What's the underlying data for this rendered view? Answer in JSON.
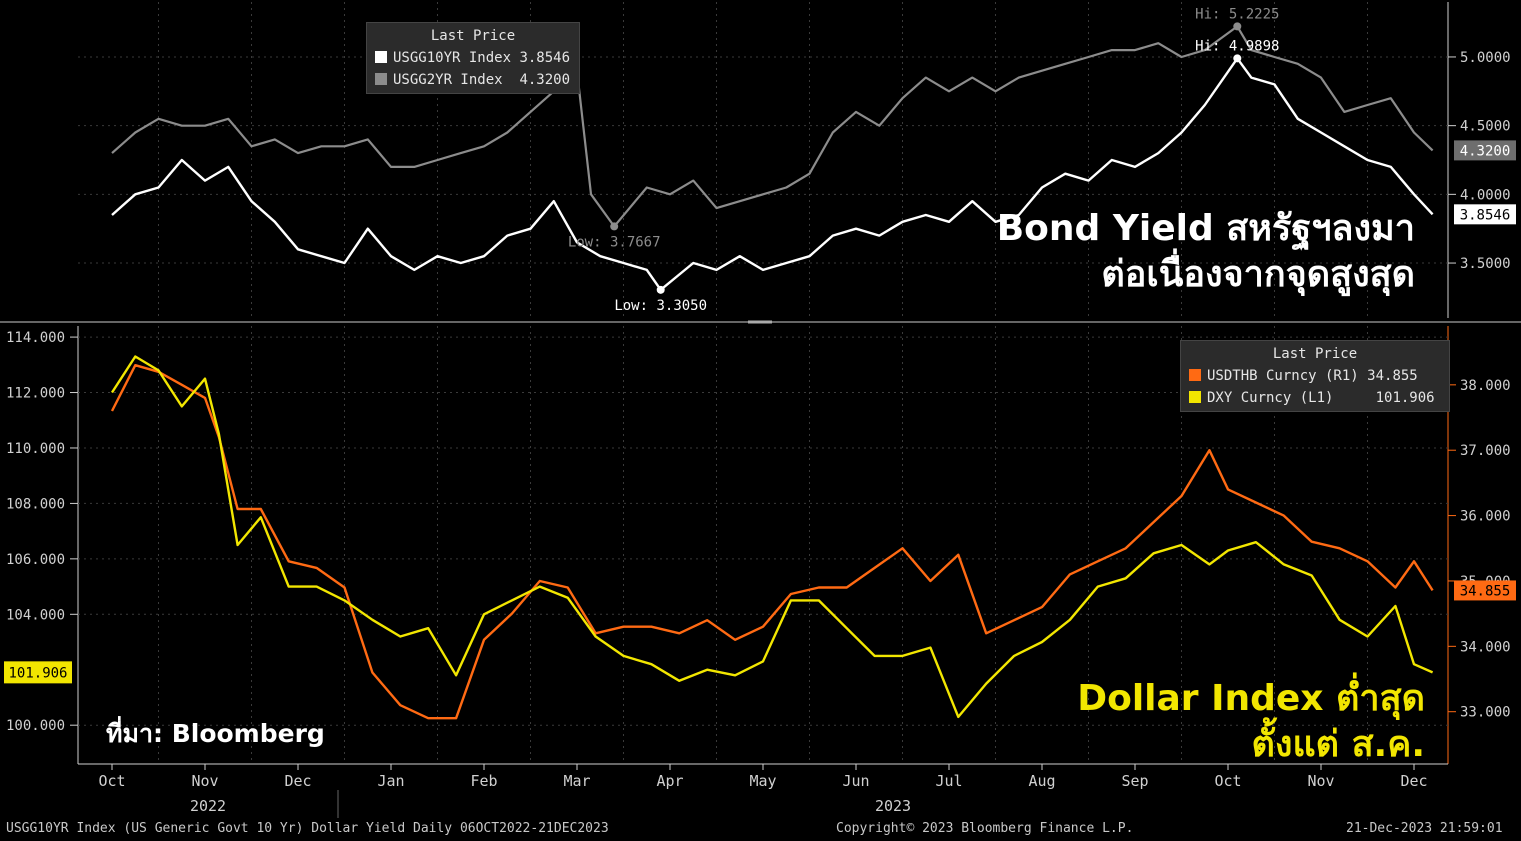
{
  "colors": {
    "us10": "#ffffff",
    "us2": "#8c8c8c",
    "thb": "#ff6a13",
    "dxy": "#f2e600",
    "grid": "#3a3a3a",
    "axis": "#d0d0d0",
    "thb_axis": "#ff6a13"
  },
  "top_legend": {
    "title": "Last Price",
    "items": [
      {
        "name": "USGG10YR Index",
        "value": "3.8546",
        "color": "#ffffff"
      },
      {
        "name": "USGG2YR Index",
        "value": "4.3200",
        "color": "#8c8c8c"
      }
    ]
  },
  "bottom_legend": {
    "title": "Last Price",
    "items": [
      {
        "name": "USDTHB Curncy  (R1)",
        "value": "34.855",
        "color": "#ff6a13"
      },
      {
        "name": "DXY Curncy  (L1)",
        "value": "101.906",
        "color": "#f2e600"
      }
    ]
  },
  "headline_top": [
    "Bond Yield สหรัฐฯลงมา",
    "ต่อเนื่องจากจุดสูงสุด"
  ],
  "headline_bottom": [
    "Dollar Index ต่ำสุด",
    "ตั้งแต่ ส.ค."
  ],
  "source": "ที่มา: Bloomberg",
  "footer": {
    "left": "USGG10YR Index (US Generic Govt 10 Yr) Dollar Yield  Daily 06OCT2022-21DEC2023",
    "mid": "Copyright© 2023 Bloomberg Finance L.P.",
    "right": "21-Dec-2023 21:59:01"
  },
  "chart_data": [
    {
      "type": "line",
      "panel": "top",
      "x_months": [
        "Oct",
        "Nov",
        "Dec",
        "Jan",
        "Feb",
        "Mar",
        "Apr",
        "May",
        "Jun",
        "Jul",
        "Aug",
        "Sep",
        "Oct",
        "Nov",
        "Dec"
      ],
      "year_labels": [
        "2022",
        "2023"
      ],
      "ylim": [
        3.1,
        5.4
      ],
      "yticks": [
        "5.0000",
        "4.5000",
        "4.0000",
        "3.5000"
      ],
      "annotations": [
        {
          "text": "Hi: 5.2225",
          "series": "USGG2YR Index",
          "x": 12.1,
          "y": 5.2225
        },
        {
          "text": "Hi: 4.9898",
          "series": "USGG10YR Index",
          "x": 12.1,
          "y": 4.9898
        },
        {
          "text": "Low: 3.7667",
          "series": "USGG2YR Index",
          "x": 5.4,
          "y": 3.7667
        },
        {
          "text": "Low: 3.3050",
          "series": "USGG10YR Index",
          "x": 5.9,
          "y": 3.305
        }
      ],
      "last_values": [
        {
          "series": "USGG2YR Index",
          "label": "4.3200",
          "value": 4.32
        },
        {
          "series": "USGG10YR Index",
          "label": "3.8546",
          "value": 3.8546
        }
      ],
      "series": [
        {
          "name": "USGG10YR Index",
          "x": [
            0,
            0.25,
            0.5,
            0.75,
            1.0,
            1.25,
            1.5,
            1.75,
            2.0,
            2.25,
            2.5,
            2.75,
            3.0,
            3.25,
            3.5,
            3.75,
            4.0,
            4.25,
            4.5,
            4.75,
            5.0,
            5.25,
            5.5,
            5.75,
            5.9,
            6.25,
            6.5,
            6.75,
            7.0,
            7.25,
            7.5,
            7.75,
            8.0,
            8.25,
            8.5,
            8.75,
            9.0,
            9.25,
            9.5,
            9.75,
            10.0,
            10.25,
            10.5,
            10.75,
            11.0,
            11.25,
            11.5,
            11.75,
            12.1,
            12.25,
            12.5,
            12.75,
            13.0,
            13.25,
            13.5,
            13.75,
            14.0,
            14.2
          ],
          "y": [
            3.85,
            4.0,
            4.05,
            4.25,
            4.1,
            4.2,
            3.95,
            3.8,
            3.6,
            3.55,
            3.5,
            3.75,
            3.55,
            3.45,
            3.55,
            3.5,
            3.55,
            3.7,
            3.75,
            3.95,
            3.65,
            3.55,
            3.5,
            3.45,
            3.305,
            3.5,
            3.45,
            3.55,
            3.45,
            3.5,
            3.55,
            3.7,
            3.75,
            3.7,
            3.8,
            3.85,
            3.8,
            3.95,
            3.8,
            3.85,
            4.05,
            4.15,
            4.1,
            4.25,
            4.2,
            4.3,
            4.45,
            4.65,
            4.9898,
            4.85,
            4.8,
            4.55,
            4.45,
            4.35,
            4.25,
            4.2,
            4.0,
            3.8546
          ]
        },
        {
          "name": "USGG2YR Index",
          "x": [
            0,
            0.25,
            0.5,
            0.75,
            1.0,
            1.25,
            1.5,
            1.75,
            2.0,
            2.25,
            2.5,
            2.75,
            3.0,
            3.25,
            3.5,
            3.75,
            4.0,
            4.25,
            4.5,
            4.75,
            5.0,
            5.15,
            5.4,
            5.75,
            6.0,
            6.25,
            6.5,
            6.75,
            7.0,
            7.25,
            7.5,
            7.75,
            8.0,
            8.25,
            8.5,
            8.75,
            9.0,
            9.25,
            9.5,
            9.75,
            10.0,
            10.25,
            10.5,
            10.75,
            11.0,
            11.25,
            11.5,
            11.75,
            12.1,
            12.25,
            12.5,
            12.75,
            13.0,
            13.25,
            13.5,
            13.75,
            14.0,
            14.2
          ],
          "y": [
            4.3,
            4.45,
            4.55,
            4.5,
            4.5,
            4.55,
            4.35,
            4.4,
            4.3,
            4.35,
            4.35,
            4.4,
            4.2,
            4.2,
            4.25,
            4.3,
            4.35,
            4.45,
            4.6,
            4.75,
            4.9,
            4.0,
            3.7667,
            4.05,
            4.0,
            4.1,
            3.9,
            3.95,
            4.0,
            4.05,
            4.15,
            4.45,
            4.6,
            4.5,
            4.7,
            4.85,
            4.75,
            4.85,
            4.75,
            4.85,
            4.9,
            4.95,
            5.0,
            5.05,
            5.05,
            5.1,
            5.0,
            5.05,
            5.2225,
            5.05,
            5.0,
            4.95,
            4.85,
            4.6,
            4.65,
            4.7,
            4.45,
            4.32
          ]
        }
      ]
    },
    {
      "type": "line",
      "panel": "bottom",
      "x_months": [
        "Oct",
        "Nov",
        "Dec",
        "Jan",
        "Feb",
        "Mar",
        "Apr",
        "May",
        "Jun",
        "Jul",
        "Aug",
        "Sep",
        "Oct",
        "Nov",
        "Dec"
      ],
      "year_labels": [
        "2022",
        "2023"
      ],
      "ylim_left": [
        98.6,
        114.4
      ],
      "yticks_left": [
        "114.000",
        "112.000",
        "110.000",
        "108.000",
        "106.000",
        "104.000",
        "100.000"
      ],
      "ylim_right": [
        32.2,
        38.9
      ],
      "yticks_right": [
        "38.000",
        "37.000",
        "36.000",
        "35.000",
        "34.000",
        "33.000"
      ],
      "last_values": [
        {
          "series": "DXY Curncy  (L1)",
          "label": "101.906",
          "value": 101.906,
          "axis": "left"
        },
        {
          "series": "USDTHB Curncy  (R1)",
          "label": "34.855",
          "value": 34.855,
          "axis": "right"
        }
      ],
      "series": [
        {
          "name": "USDTHB Curncy  (R1)",
          "axis": "right",
          "x": [
            0,
            0.25,
            0.5,
            0.75,
            1.0,
            1.15,
            1.35,
            1.6,
            1.9,
            2.2,
            2.5,
            2.8,
            3.1,
            3.4,
            3.7,
            4.0,
            4.3,
            4.6,
            4.9,
            5.2,
            5.5,
            5.8,
            6.1,
            6.4,
            6.7,
            7.0,
            7.3,
            7.6,
            7.9,
            8.2,
            8.5,
            8.8,
            9.1,
            9.4,
            9.7,
            10.0,
            10.3,
            10.6,
            10.9,
            11.2,
            11.5,
            11.8,
            12.0,
            12.3,
            12.6,
            12.9,
            13.2,
            13.5,
            13.8,
            14.0,
            14.2
          ],
          "y": [
            37.6,
            38.3,
            38.2,
            38.0,
            37.8,
            37.2,
            36.1,
            36.1,
            35.3,
            35.2,
            34.9,
            33.6,
            33.1,
            32.9,
            32.9,
            34.1,
            34.5,
            35.0,
            34.9,
            34.2,
            34.3,
            34.3,
            34.2,
            34.4,
            34.1,
            34.3,
            34.8,
            34.9,
            34.9,
            35.2,
            35.5,
            35.0,
            35.4,
            34.2,
            34.4,
            34.6,
            35.1,
            35.3,
            35.5,
            35.9,
            36.3,
            37.0,
            36.4,
            36.2,
            36.0,
            35.6,
            35.5,
            35.3,
            34.9,
            35.3,
            34.855
          ]
        },
        {
          "name": "DXY Curncy  (L1)",
          "axis": "left",
          "x": [
            0,
            0.25,
            0.5,
            0.75,
            1.0,
            1.15,
            1.35,
            1.6,
            1.9,
            2.2,
            2.5,
            2.8,
            3.1,
            3.4,
            3.7,
            4.0,
            4.3,
            4.6,
            4.9,
            5.2,
            5.5,
            5.8,
            6.1,
            6.4,
            6.7,
            7.0,
            7.3,
            7.6,
            7.9,
            8.2,
            8.5,
            8.8,
            9.1,
            9.4,
            9.7,
            10.0,
            10.3,
            10.6,
            10.9,
            11.2,
            11.5,
            11.8,
            12.0,
            12.3,
            12.6,
            12.9,
            13.2,
            13.5,
            13.8,
            14.0,
            14.2
          ],
          "y": [
            112.0,
            113.3,
            112.8,
            111.5,
            112.5,
            110.5,
            106.5,
            107.5,
            105.0,
            105.0,
            104.5,
            103.8,
            103.2,
            103.5,
            101.8,
            104.0,
            104.5,
            105.0,
            104.6,
            103.2,
            102.5,
            102.2,
            101.6,
            102.0,
            101.8,
            102.3,
            104.5,
            104.5,
            103.5,
            102.5,
            102.5,
            102.8,
            100.3,
            101.5,
            102.5,
            103.0,
            103.8,
            105.0,
            105.3,
            106.2,
            106.5,
            105.8,
            106.3,
            106.6,
            105.8,
            105.4,
            103.8,
            103.2,
            104.3,
            102.2,
            101.906
          ]
        }
      ]
    }
  ]
}
